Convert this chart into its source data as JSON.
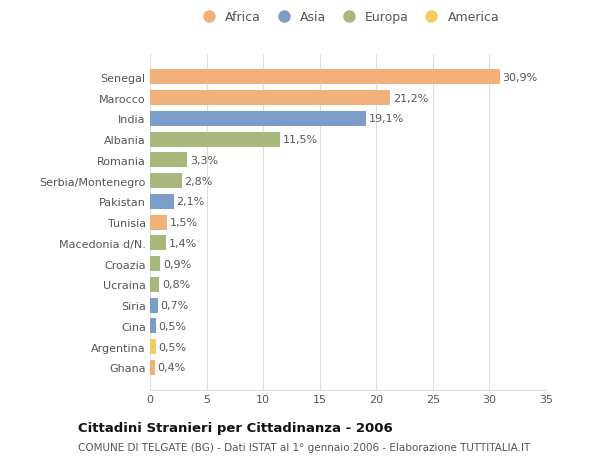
{
  "countries": [
    "Senegal",
    "Marocco",
    "India",
    "Albania",
    "Romania",
    "Serbia/Montenegro",
    "Pakistan",
    "Tunisia",
    "Macedonia d/N.",
    "Croazia",
    "Ucraina",
    "Siria",
    "Cina",
    "Argentina",
    "Ghana"
  ],
  "values": [
    30.9,
    21.2,
    19.1,
    11.5,
    3.3,
    2.8,
    2.1,
    1.5,
    1.4,
    0.9,
    0.8,
    0.7,
    0.5,
    0.5,
    0.4
  ],
  "labels": [
    "30,9%",
    "21,2%",
    "19,1%",
    "11,5%",
    "3,3%",
    "2,8%",
    "2,1%",
    "1,5%",
    "1,4%",
    "0,9%",
    "0,8%",
    "0,7%",
    "0,5%",
    "0,5%",
    "0,4%"
  ],
  "continents": [
    "Africa",
    "Africa",
    "Asia",
    "Europa",
    "Europa",
    "Europa",
    "Asia",
    "Africa",
    "Europa",
    "Europa",
    "Europa",
    "Asia",
    "Asia",
    "America",
    "Africa"
  ],
  "continent_colors": {
    "Africa": "#F2B07B",
    "Asia": "#7B9DC8",
    "Europa": "#A8B87A",
    "America": "#F0CE60"
  },
  "legend_order": [
    "Africa",
    "Asia",
    "Europa",
    "America"
  ],
  "title": "Cittadini Stranieri per Cittadinanza - 2006",
  "subtitle": "COMUNE DI TELGATE (BG) - Dati ISTAT al 1° gennaio 2006 - Elaborazione TUTTITALIA.IT",
  "xlim": [
    0,
    35
  ],
  "xticks": [
    0,
    5,
    10,
    15,
    20,
    25,
    30,
    35
  ],
  "background_color": "#ffffff",
  "grid_color": "#dddddd",
  "bar_height": 0.72,
  "label_fontsize": 8,
  "tick_fontsize": 8,
  "legend_fontsize": 9,
  "title_fontsize": 9.5,
  "subtitle_fontsize": 7.5
}
